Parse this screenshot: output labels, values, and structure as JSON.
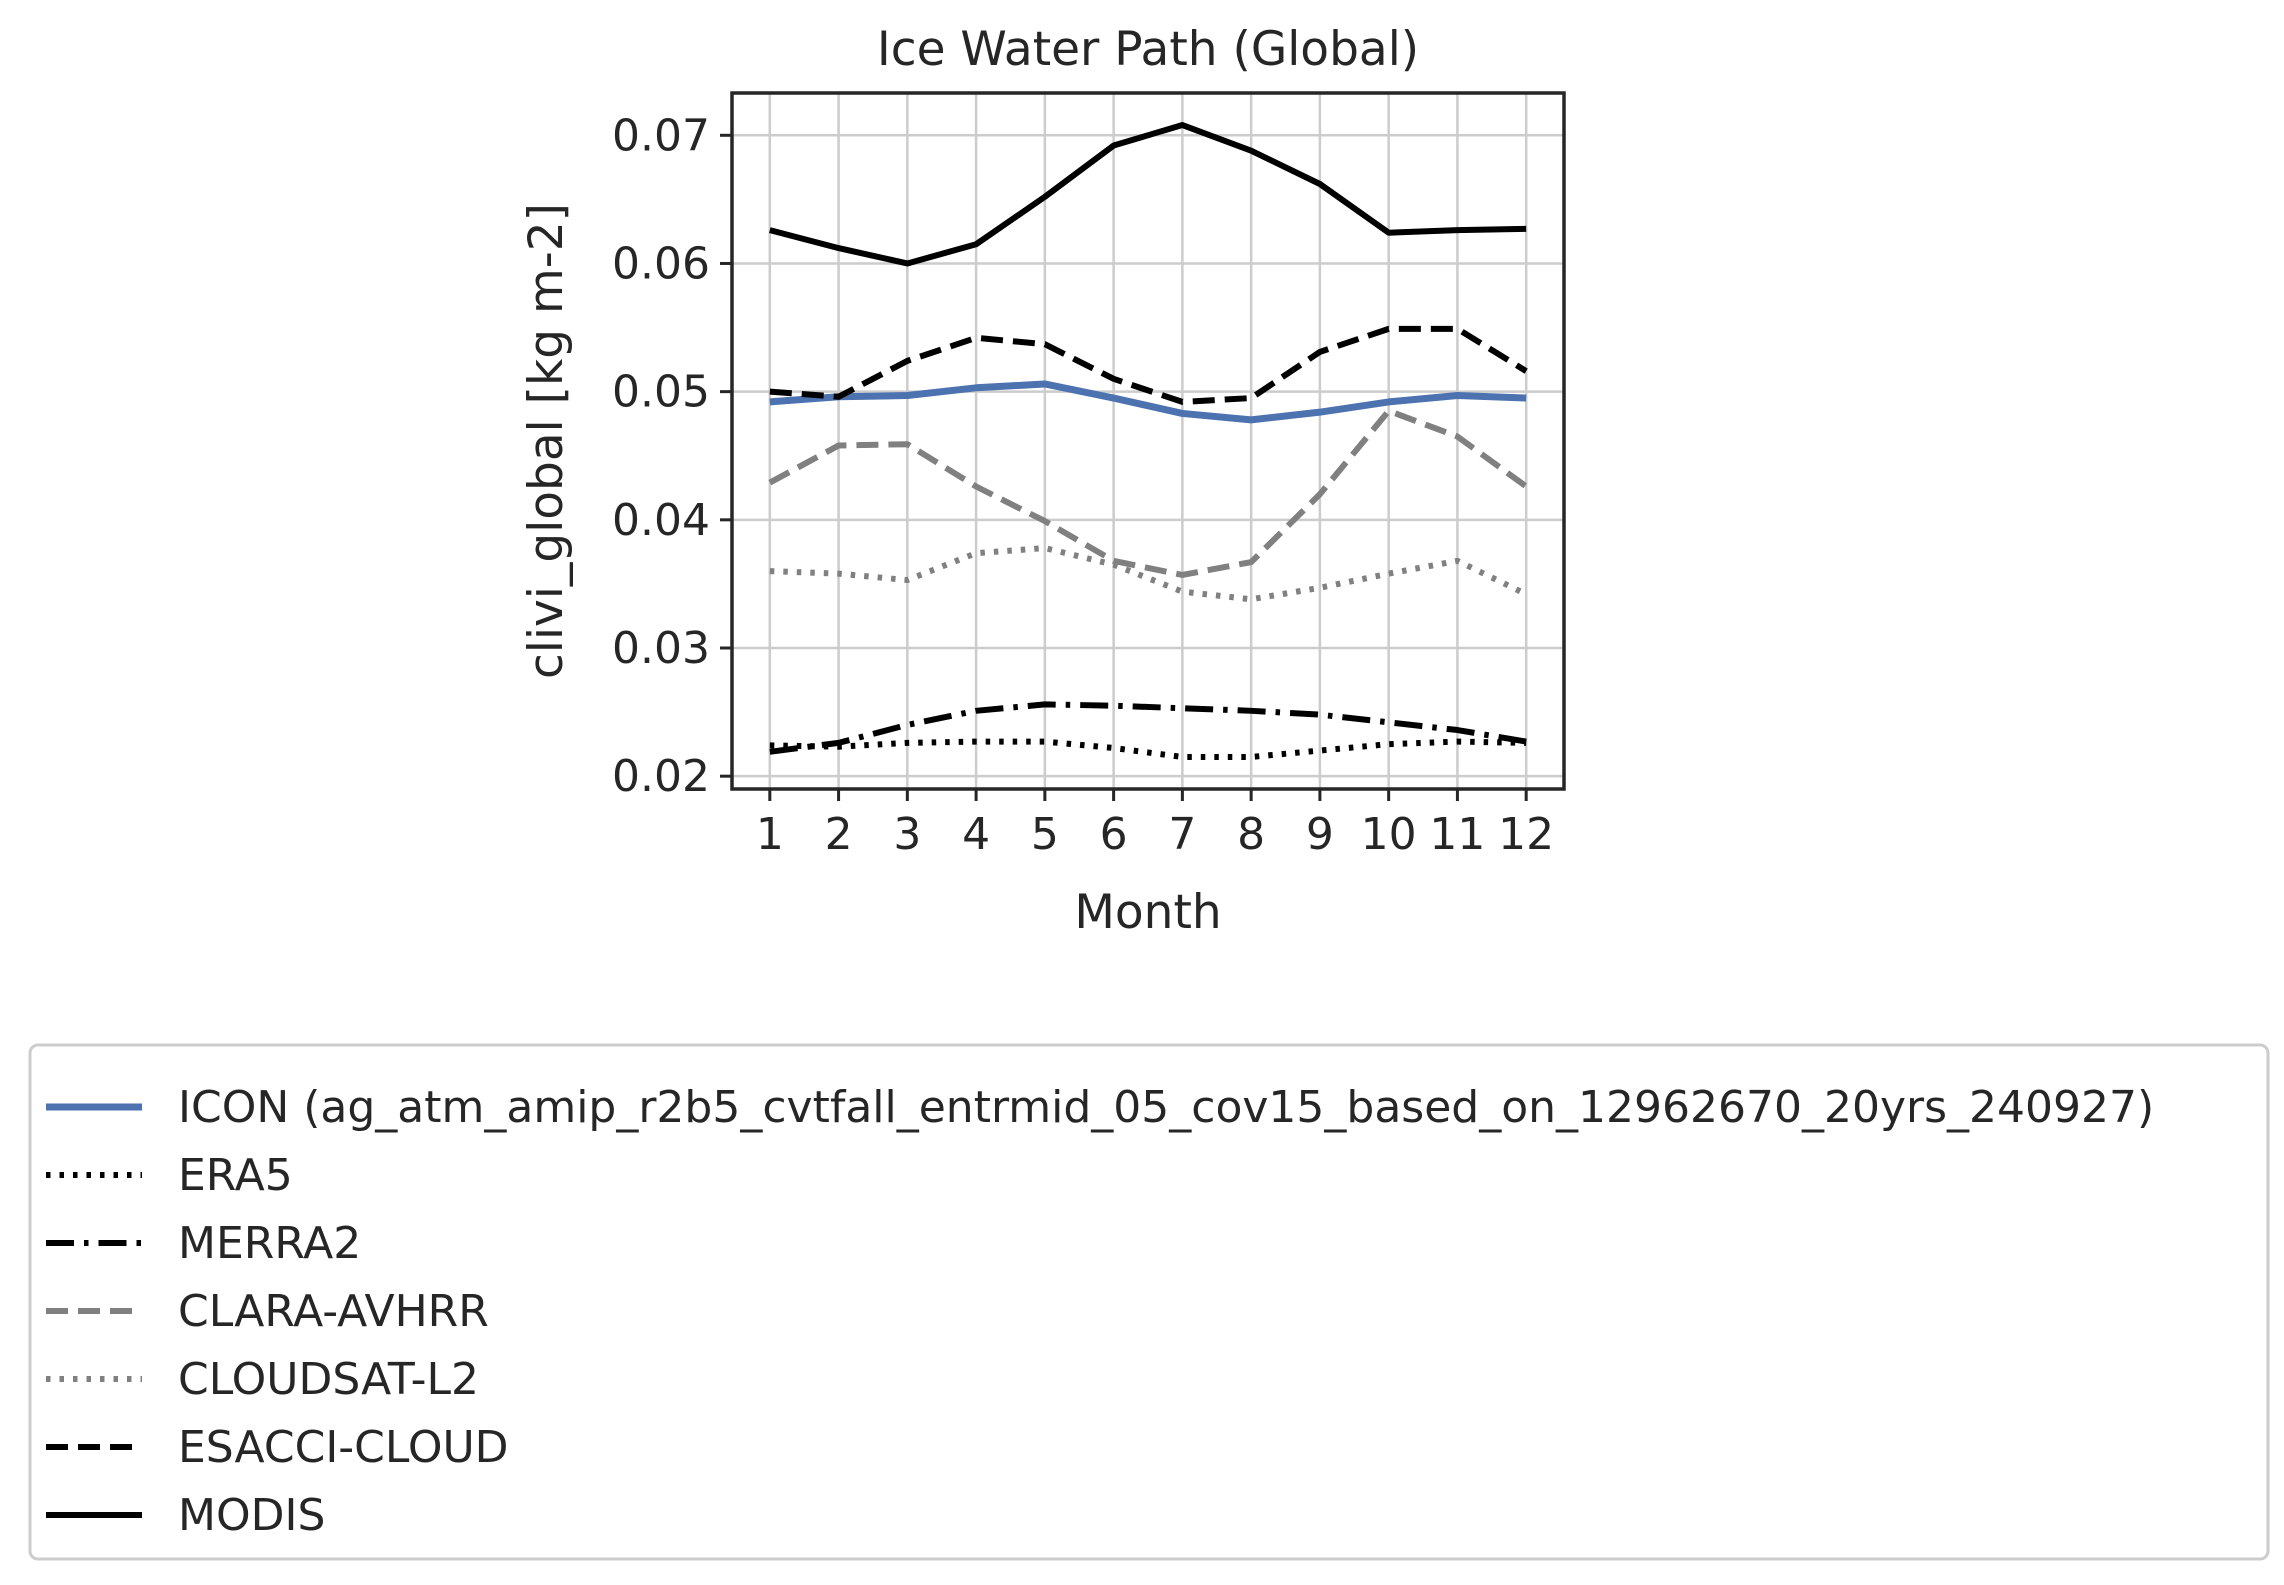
{
  "chart_data": {
    "type": "line",
    "title": "Ice Water Path (Global)",
    "xlabel": "Month",
    "ylabel": "clivi_global [kg m-2]",
    "x": [
      1,
      2,
      3,
      4,
      5,
      6,
      7,
      8,
      9,
      10,
      11,
      12
    ],
    "x_ticks": [
      "1",
      "2",
      "3",
      "4",
      "5",
      "6",
      "7",
      "8",
      "9",
      "10",
      "11",
      "12"
    ],
    "y_ticks": [
      "0.02",
      "0.03",
      "0.04",
      "0.05",
      "0.06",
      "0.07"
    ],
    "ylim": [
      0.019,
      0.0733
    ],
    "xlim": [
      0.45,
      12.55
    ],
    "grid": true,
    "legend_position": "below",
    "series": [
      {
        "name": "ICON (ag_atm_amip_r2b5_cvtfall_entrmid_05_cov15_based_on_12962670_20yrs_240927)",
        "color": "#4c72b0",
        "style": "solid",
        "values": [
          0.0492,
          0.0496,
          0.0497,
          0.0503,
          0.0506,
          0.0495,
          0.0483,
          0.0478,
          0.0484,
          0.0492,
          0.0497,
          0.0495
        ]
      },
      {
        "name": "ERA5",
        "color": "#000000",
        "style": "dotted",
        "values": [
          0.0224,
          0.0223,
          0.0226,
          0.0227,
          0.0227,
          0.0222,
          0.0215,
          0.0215,
          0.022,
          0.0225,
          0.0227,
          0.0226
        ]
      },
      {
        "name": "MERRA2",
        "color": "#000000",
        "style": "dashdot",
        "values": [
          0.0219,
          0.0226,
          0.024,
          0.0251,
          0.0256,
          0.0255,
          0.0253,
          0.0251,
          0.0248,
          0.0242,
          0.0236,
          0.0227
        ]
      },
      {
        "name": "CLARA-AVHRR",
        "color": "#808080",
        "style": "dashed",
        "values": [
          0.0429,
          0.0458,
          0.0459,
          0.0426,
          0.0399,
          0.0368,
          0.0357,
          0.0367,
          0.042,
          0.0485,
          0.0465,
          0.0426
        ]
      },
      {
        "name": "CLOUDSAT-L2",
        "color": "#808080",
        "style": "dotted",
        "values": [
          0.036,
          0.0358,
          0.0353,
          0.0374,
          0.0378,
          0.0365,
          0.0344,
          0.0338,
          0.0347,
          0.0358,
          0.0368,
          0.0342
        ]
      },
      {
        "name": "ESACCI-CLOUD",
        "color": "#000000",
        "style": "dashed",
        "values": [
          0.05,
          0.0496,
          0.0524,
          0.0542,
          0.0537,
          0.051,
          0.0492,
          0.0495,
          0.0531,
          0.0549,
          0.0549,
          0.0516
        ]
      },
      {
        "name": "MODIS",
        "color": "#000000",
        "style": "solid",
        "values": [
          0.0626,
          0.0612,
          0.06,
          0.0615,
          0.0652,
          0.0692,
          0.0708,
          0.0688,
          0.0662,
          0.0624,
          0.0626,
          0.0627
        ]
      }
    ]
  }
}
